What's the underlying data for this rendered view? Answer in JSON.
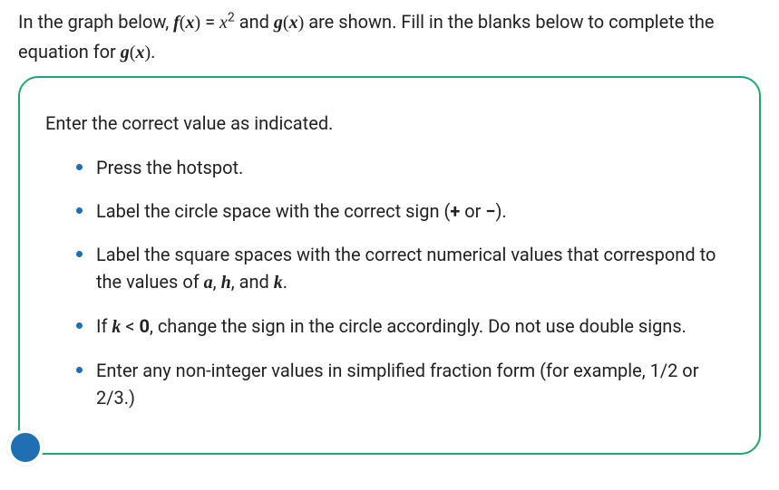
{
  "colors": {
    "panel_border": "#1aa86f",
    "bullet": "#1f6fb2",
    "text": "#222222",
    "bg": "#ffffff",
    "chat_bubble": "#1f6fb2"
  },
  "question": {
    "prefix": "In the graph below, ",
    "f_func": "f",
    "f_paren_open": "(",
    "f_arg": "x",
    "f_paren_close": ")",
    "eq": " = ",
    "f_rhs_base": "x",
    "f_rhs_exp": "2",
    "between": " and ",
    "g_func": "g",
    "g_paren_open": "(",
    "g_arg": "x",
    "g_paren_close": ")",
    "after": " are shown. Fill in the blanks below to complete the equation for ",
    "g2_func": "g",
    "g2_paren_open": "(",
    "g2_arg": "x",
    "g2_paren_close": ")",
    "period": "."
  },
  "panel": {
    "heading": "Enter the correct value as indicated.",
    "items": [
      {
        "text": "Press the hotspot."
      },
      {
        "prefix": "Label the circle space with the correct sign (",
        "plus": "+",
        "or": " or ",
        "minus": "−",
        "suffix": ")."
      },
      {
        "prefix": "Label the square spaces with the correct numerical values that correspond to the values of ",
        "a": "a",
        "c1": ", ",
        "h": "h",
        "c2": ", and ",
        "k": "k",
        "suffix": "."
      },
      {
        "prefix": "If ",
        "k": "k",
        "lt": " < ",
        "zero": "0",
        "suffix": ", change the sign in the circle accordingly. Do not use double signs."
      },
      {
        "text": "Enter any non-integer values in simplified fraction form (for example, 1/2 or 2/3.)"
      }
    ]
  }
}
